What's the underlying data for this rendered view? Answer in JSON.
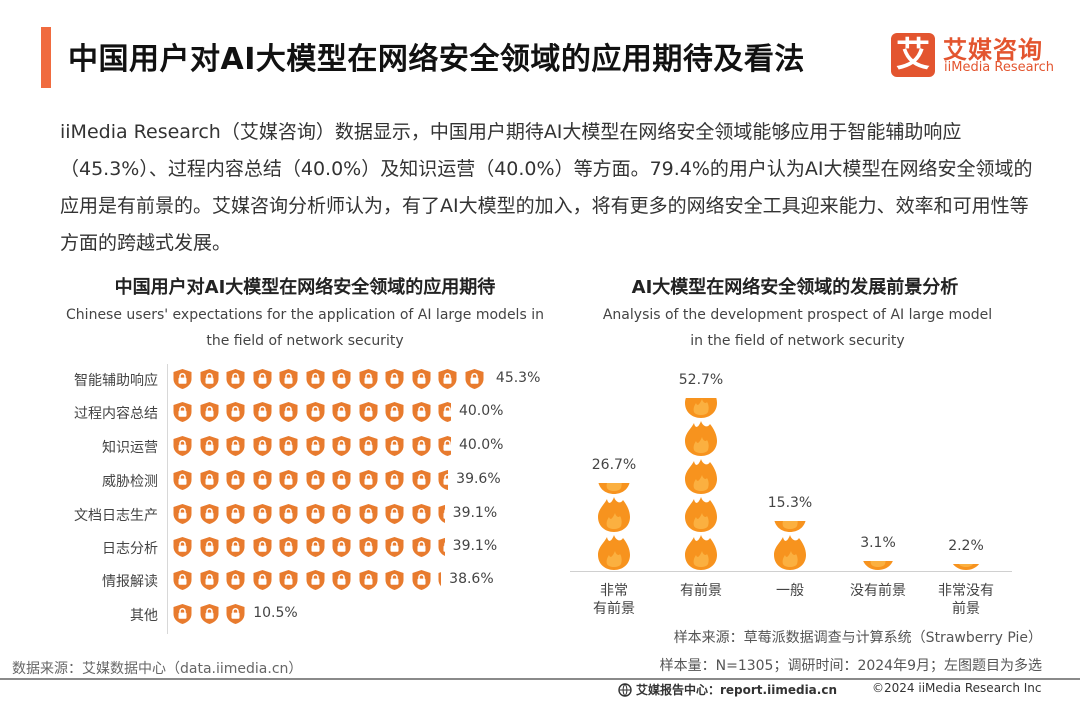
{
  "header": {
    "title": "中国用户对AI大模型在网络安全领域的应用期待及看法",
    "accent_color": "#f06b3f",
    "logo": {
      "mark": "艾",
      "cn": "艾媒咨询",
      "en": "iiMedia Research",
      "color": "#e3552f"
    }
  },
  "summary": "iiMedia Research（艾媒咨询）数据显示，中国用户期待AI大模型在网络安全领域能够应用于智能辅助响应（45.3%）、过程内容总结（40.0%）及知识运营（40.0%）等方面。79.4%的用户认为AI大模型在网络安全领域的应用是有前景的。艾媒咨询分析师认为，有了AI大模型的加入，将有更多的网络安全工具迎来能力、效率和可用性等方面的跨越式发展。",
  "left_chart": {
    "title_cn": "中国用户对AI大模型在网络安全领域的应用期待",
    "title_en": "Chinese users' expectations for the application of AI large models in the field of network security",
    "icon": "shield-lock-icon",
    "icon_color": "#e87b2e"
  },
  "right_chart": {
    "title_cn": "AI大模型在网络安全领域的发展前景分析",
    "title_en": "Analysis of the development prospect of AI large model in the field of network security",
    "icon": "flame-icon",
    "icon_color": "#f7931e"
  },
  "chart_data": [
    {
      "type": "bar",
      "orientation": "horizontal",
      "pictorial": true,
      "title": "中国用户对AI大模型在网络安全领域的应用期待",
      "subtitle": "Chinese users' expectations for the application of AI large models in the field of network security",
      "categories": [
        "智能辅助响应",
        "过程内容总结",
        "知识运营",
        "威胁检测",
        "文档日志生产",
        "日志分析",
        "情报解读",
        "其他"
      ],
      "values": [
        45.3,
        40.0,
        40.0,
        39.6,
        39.1,
        39.1,
        38.6,
        10.5
      ],
      "unit": "%",
      "xlabel": "",
      "ylabel": "",
      "grid": false,
      "legend": null
    },
    {
      "type": "bar",
      "orientation": "vertical",
      "pictorial": true,
      "title": "AI大模型在网络安全领域的发展前景分析",
      "subtitle": "Analysis of the development prospect of AI large model in the field of network security",
      "categories": [
        "非常有前景",
        "有前景",
        "一般",
        "没有前景",
        "非常没有前景"
      ],
      "values": [
        26.7,
        52.7,
        15.3,
        3.1,
        2.2
      ],
      "unit": "%",
      "xlabel": "",
      "ylabel": "",
      "grid": false,
      "legend": null
    }
  ],
  "left_rows": [
    {
      "label": "智能辅助响应",
      "value": "45.3%"
    },
    {
      "label": "过程内容总结",
      "value": "40.0%"
    },
    {
      "label": "知识运营",
      "value": "40.0%"
    },
    {
      "label": "威胁检测",
      "value": "39.6%"
    },
    {
      "label": "文档日志生产",
      "value": "39.1%"
    },
    {
      "label": "日志分析",
      "value": "39.1%"
    },
    {
      "label": "情报解读",
      "value": "38.6%"
    },
    {
      "label": "其他",
      "value": "10.5%"
    }
  ],
  "right_cols": [
    {
      "label_line1": "非常",
      "label_line2": "有前景",
      "value": "26.7%"
    },
    {
      "label_line1": "有前景",
      "label_line2": "",
      "value": "52.7%"
    },
    {
      "label_line1": "一般",
      "label_line2": "",
      "value": "15.3%"
    },
    {
      "label_line1": "没有前景",
      "label_line2": "",
      "value": "3.1%"
    },
    {
      "label_line1": "非常没有",
      "label_line2": "前景",
      "value": "2.2%"
    }
  ],
  "notes": {
    "sample_source": "样本来源：草莓派数据调查与计算系统（Strawberry Pie）",
    "sample_size": "样本量：N=1305；调研时间：2024年9月；左图题目为多选",
    "data_source": "数据来源：艾媒数据中心（data.iimedia.cn）"
  },
  "footer": {
    "report_center": "艾媒报告中心：report.iimedia.cn",
    "copyright": "©2024 iiMedia Research Inc"
  }
}
